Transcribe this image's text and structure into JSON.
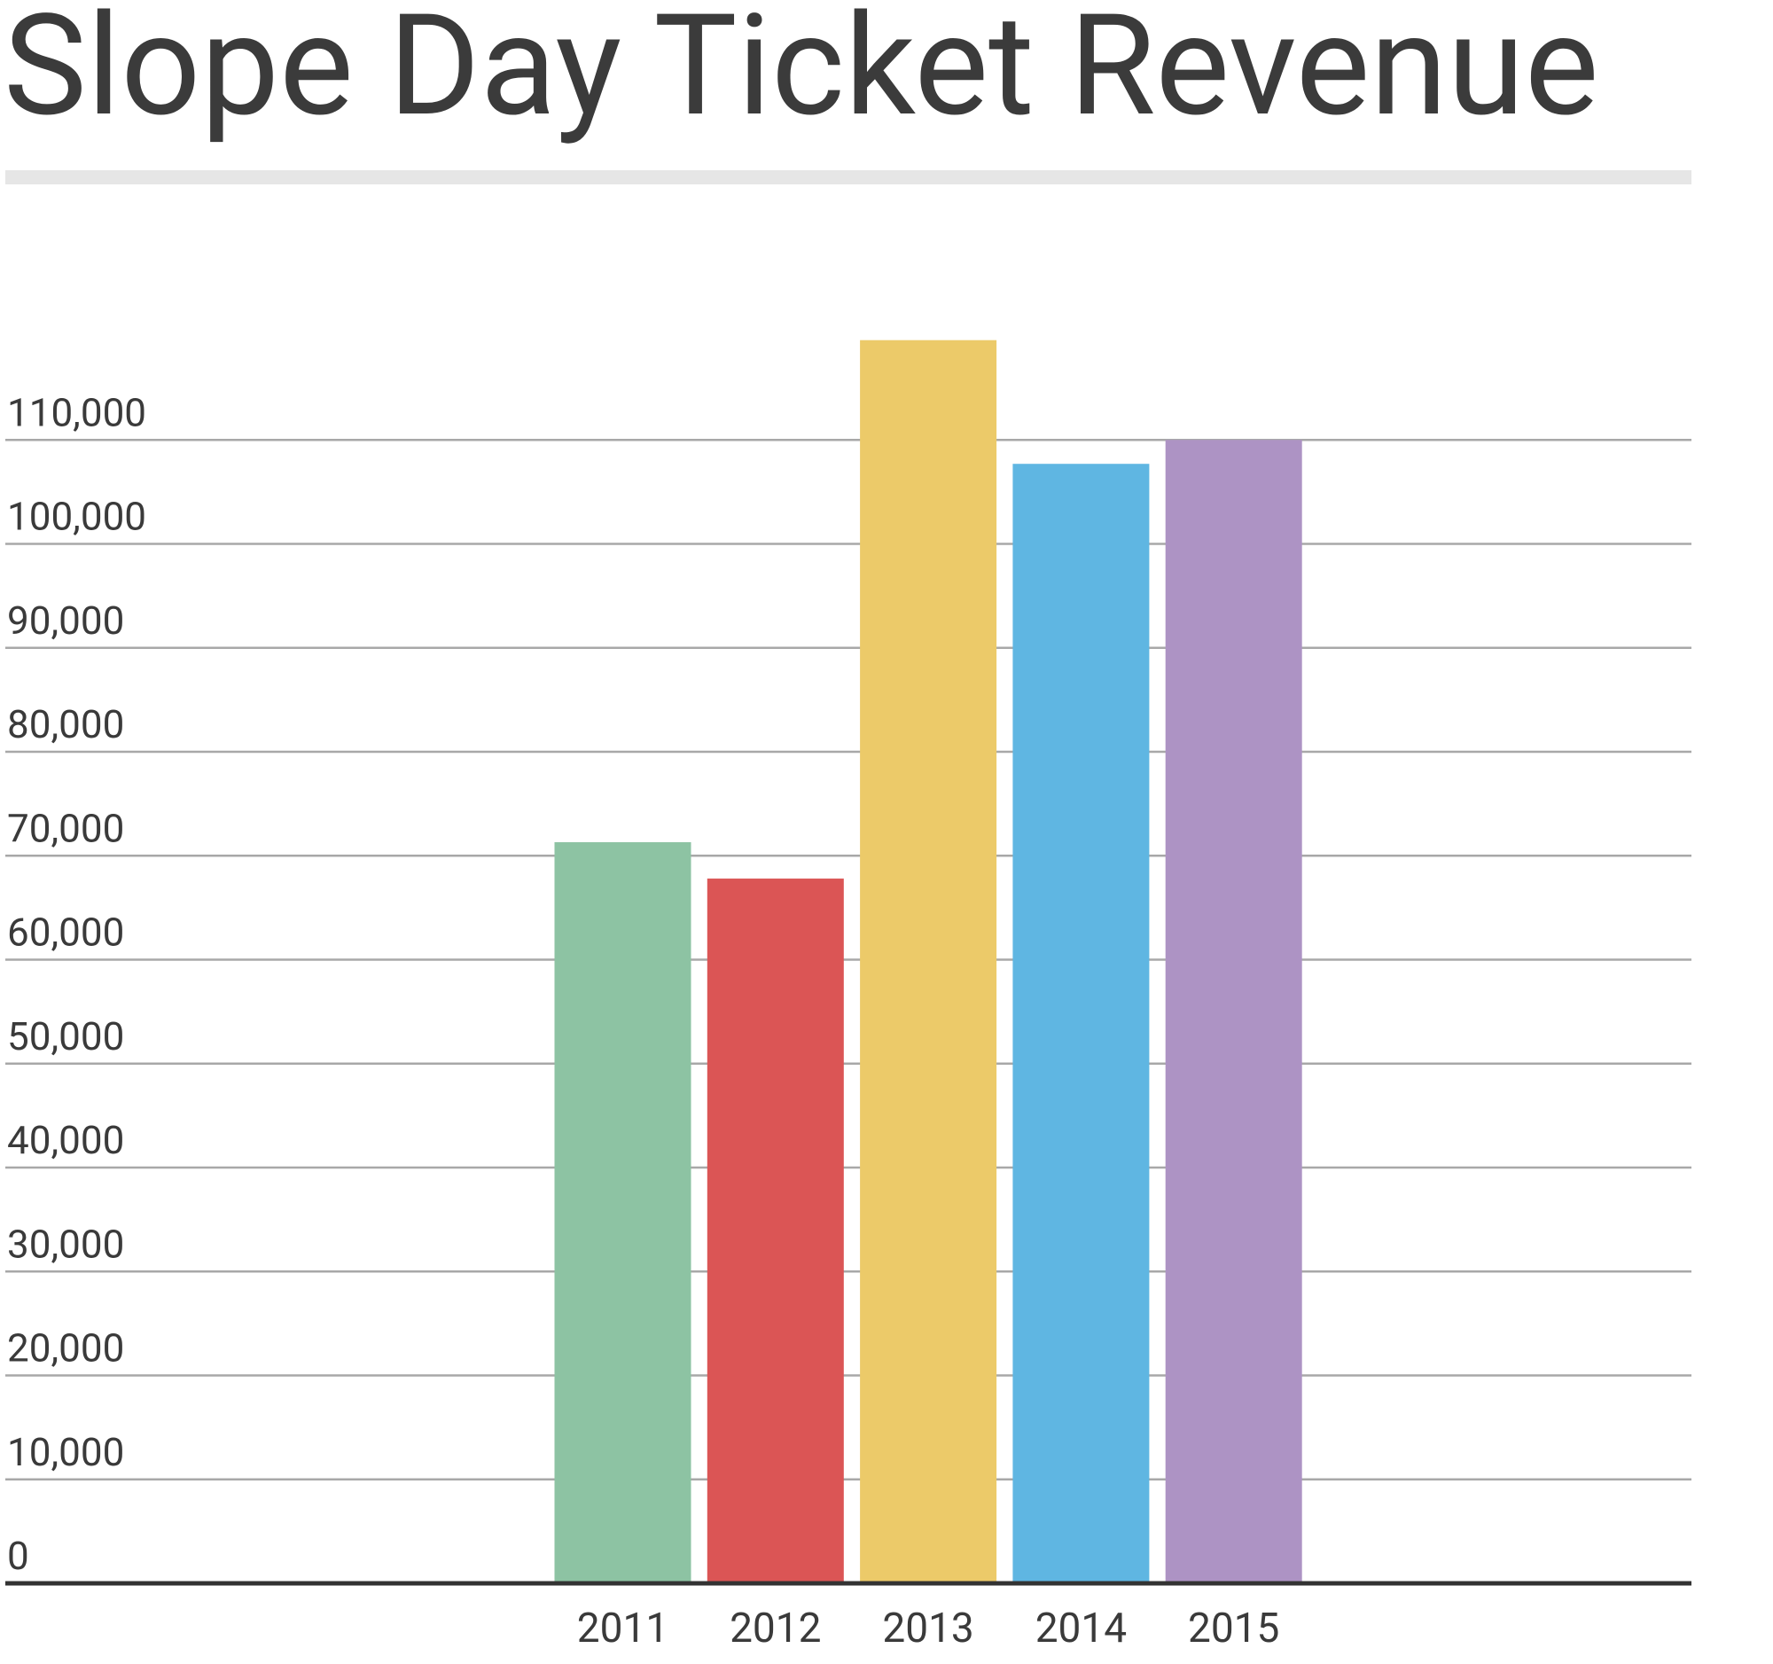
{
  "chart_data": {
    "type": "bar",
    "title": "Slope Day Ticket Revenue",
    "categories": [
      "2011",
      "2012",
      "2013",
      "2014",
      "2015"
    ],
    "values": [
      71300,
      67800,
      119600,
      107700,
      110000
    ],
    "colors": [
      "#8dc3a3",
      "#db5555",
      "#ecca69",
      "#5fb6e2",
      "#ad93c4"
    ],
    "ylim": [
      0,
      120000
    ],
    "yticks": [
      0,
      {
        "value": 10000,
        "label": "10,000"
      },
      {
        "value": 20000,
        "label": "20,000"
      },
      {
        "value": 30000,
        "label": "30,000"
      },
      {
        "value": 40000,
        "label": "40,000"
      },
      {
        "value": 50000,
        "label": "50,000"
      },
      {
        "value": 60000,
        "label": "60,000"
      },
      {
        "value": 70000,
        "label": "70,000"
      },
      {
        "value": 80000,
        "label": "80,000"
      },
      {
        "value": 90000,
        "label": "90,000"
      },
      {
        "value": 100000,
        "label": "100,000"
      },
      {
        "value": 110000,
        "label": "110,000"
      }
    ],
    "grid": true
  }
}
